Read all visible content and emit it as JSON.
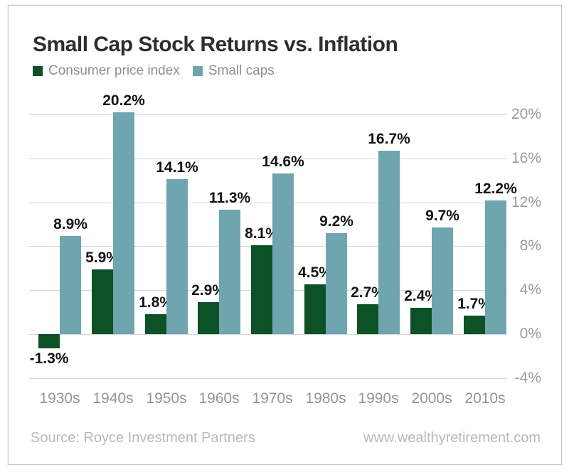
{
  "header": {
    "title": "Small Cap Stock Returns vs. Inflation"
  },
  "chart_data": {
    "type": "bar",
    "title": "Small Cap Stock Returns vs. Inflation",
    "categories": [
      "1930s",
      "1940s",
      "1950s",
      "1960s",
      "1970s",
      "1980s",
      "1990s",
      "2000s",
      "2010s"
    ],
    "series": [
      {
        "name": "Consumer price index",
        "color": "#0d5127",
        "values": [
          -1.3,
          5.9,
          1.8,
          2.9,
          8.1,
          4.5,
          2.7,
          2.4,
          1.7
        ],
        "labels": [
          "-1.3%",
          "5.9%",
          "1.8%",
          "2.9%",
          "8.1%",
          "4.5%",
          "2.7%",
          "2.4%",
          "1.7%"
        ]
      },
      {
        "name": "Small caps",
        "color": "#6fa5af",
        "values": [
          8.9,
          20.2,
          14.1,
          11.3,
          14.6,
          9.2,
          16.7,
          9.7,
          12.2
        ],
        "labels": [
          "8.9%",
          "20.2%",
          "14.1%",
          "11.3%",
          "14.6%",
          "9.2%",
          "16.7%",
          "9.7%",
          "12.2%"
        ]
      }
    ],
    "yticks": [
      20,
      16,
      12,
      8,
      4,
      0,
      -4
    ],
    "ytick_labels": [
      "20%",
      "16%",
      "12%",
      "8%",
      "4%",
      "0%",
      "-4%"
    ],
    "ylim": [
      -4,
      21
    ],
    "grid": true,
    "legend_position": "top-left",
    "xlabel": "",
    "ylabel": ""
  },
  "colors": {
    "cpi_green": "#0d5127",
    "small_caps_teal": "#6fa5af",
    "gridline": "#d4d4d4",
    "axis_text": "#9b9b9b",
    "value_text": "#141414",
    "footer_text": "#b9b9b9"
  },
  "footer": {
    "source": "Source: Royce Investment Partners",
    "website": "www.wealthyretirement.com"
  }
}
